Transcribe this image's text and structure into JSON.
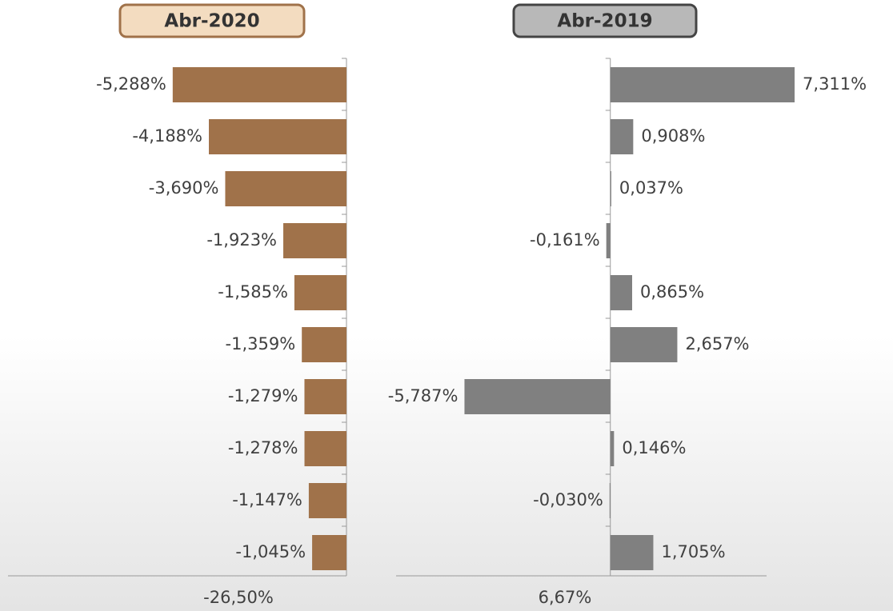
{
  "chart_data": [
    {
      "type": "bar",
      "orientation": "horizontal",
      "title": "Abr-2020",
      "color": "#a0724a",
      "categories": [
        null,
        null,
        null,
        null,
        null,
        null,
        null,
        null,
        null,
        null
      ],
      "values": [
        -5.288,
        -4.188,
        -3.69,
        -1.923,
        -1.585,
        -1.359,
        -1.279,
        -1.278,
        -1.147,
        -1.045
      ],
      "value_labels": [
        "-5,288%",
        "-4,188%",
        "-3,690%",
        "-1,923%",
        "-1,585%",
        "-1,359%",
        "-1,279%",
        "-1,278%",
        "-1,147%",
        "-1,045%"
      ],
      "xlim": [
        -10.3,
        0
      ],
      "annotation": "-26,50%"
    },
    {
      "type": "bar",
      "orientation": "horizontal",
      "title": "Abr-2019",
      "color": "#808080",
      "categories": [
        null,
        null,
        null,
        null,
        null,
        null,
        null,
        null,
        null,
        null
      ],
      "values": [
        7.311,
        0.908,
        0.037,
        -0.161,
        0.865,
        2.657,
        -5.787,
        0.146,
        -0.03,
        1.705
      ],
      "value_labels": [
        "7,311%",
        "0,908%",
        "0,037%",
        "-0,161%",
        "0,865%",
        "2,657%",
        "-5,787%",
        "0,146%",
        "-0,030%",
        "1,705%"
      ],
      "xlim": [
        -8.5,
        7.5
      ],
      "annotation": "6,67%"
    }
  ]
}
